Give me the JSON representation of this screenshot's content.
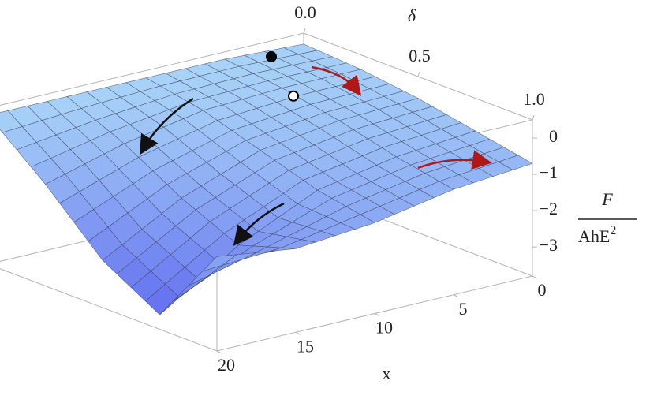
{
  "chart_data": {
    "type": "surface",
    "xlabel": "x",
    "ylabel": "δ",
    "zlabel": {
      "numerator": "F",
      "denominator": "AhE",
      "denominator_exponent": "2"
    },
    "x": [
      0,
      5,
      10,
      15,
      20
    ],
    "delta": [
      0,
      0.25,
      0.5,
      0.75,
      1
    ],
    "z": [
      [
        0.2,
        0.1,
        -0.1,
        -0.4,
        -0.7
      ],
      [
        0.3,
        0.1,
        -0.2,
        -0.6,
        -0.9
      ],
      [
        0.3,
        0.0,
        -0.5,
        -1.0,
        -1.3
      ],
      [
        0.3,
        -0.4,
        -1.3,
        -2.0,
        -1.5
      ],
      [
        0.3,
        -1.0,
        -2.5,
        -3.4,
        -1.2
      ]
    ],
    "xlim": [
      0,
      20
    ],
    "ylim": [
      0,
      1
    ],
    "zlim": [
      -3.8,
      0.5
    ],
    "xticks": [
      0,
      5,
      10,
      15,
      20
    ],
    "yticks": [
      {
        "value": 0,
        "label": "0.0"
      },
      0.5,
      {
        "value": 1,
        "label": "1.0"
      }
    ],
    "zticks": [
      0,
      {
        "value": -1,
        "label": "−1"
      },
      {
        "value": -2,
        "label": "−2"
      },
      {
        "value": -3,
        "label": "−3"
      }
    ],
    "color_scale": {
      "low": "#5a62ee",
      "high": "#acd8f8"
    },
    "points": [
      {
        "x": 3.5,
        "delta": 0.1,
        "z": 0.45,
        "color": "#000000"
      },
      {
        "x": 5,
        "delta": 0.3,
        "z": 0.0,
        "color": "#ffffff"
      }
    ]
  }
}
